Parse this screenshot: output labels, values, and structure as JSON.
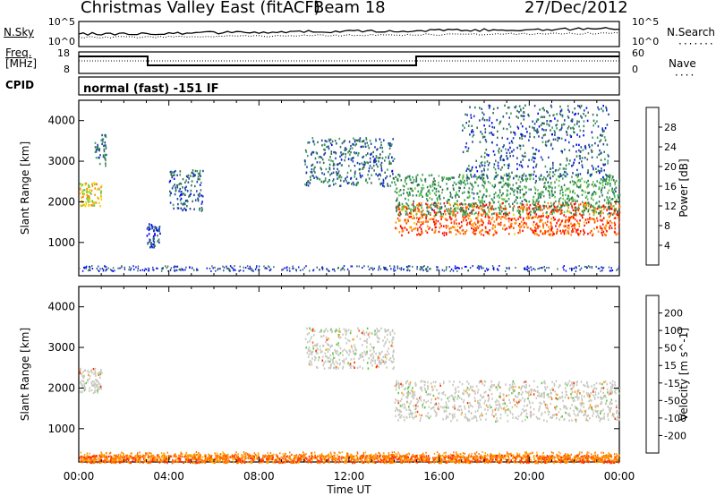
{
  "header": {
    "station": "Christmas Valley East (fitACF)",
    "beam": "Beam 18",
    "date": "27/Dec/2012"
  },
  "status_panels": {
    "nsky_label": "N.Sky",
    "nsearch_label": "N.Search",
    "nsky_ticks": [
      "10^5",
      "10^0"
    ],
    "nsearch_ticks": [
      "10^5",
      "10^0"
    ],
    "freq_label_line1": "Freq.",
    "freq_label_line2": "[MHz]",
    "freq_ticks": [
      "18",
      "8"
    ],
    "nave_label": "Nave",
    "nave_ticks": [
      "60",
      "0"
    ],
    "cpid_label": "CPID",
    "cpid_text": "normal (fast) -151 IF"
  },
  "colors": {
    "power_scale": [
      "#0000ff",
      "#1a3fa8",
      "#2e7050",
      "#3a9a5e",
      "#5cc840",
      "#f0d400",
      "#ff8c00",
      "#ff4000",
      "#ff0000"
    ],
    "velocity_scale": [
      "#2020ff",
      "#1a3fa8",
      "#2e8a50",
      "#5cc840",
      "#c8c8c0",
      "#ffa000",
      "#ff7000",
      "#ff3000",
      "#ff0000"
    ],
    "frame": "#000000"
  },
  "chart_data": [
    {
      "type": "heatmap",
      "name": "power",
      "ylabel": "Slant Range [km]",
      "xlabel": "",
      "x_ticks": [
        "00:00",
        "04:00",
        "08:00",
        "12:00",
        "16:00",
        "20:00",
        "00:00"
      ],
      "x_range_hours": [
        0,
        24
      ],
      "y_ticks": [
        "1000",
        "2000",
        "3000",
        "4000"
      ],
      "y_range_km": [
        180,
        4500
      ],
      "colorbar_label": "Power [dB]",
      "colorbar_ticks": [
        "28",
        "24",
        "20",
        "16",
        "12",
        "8",
        "4"
      ],
      "colorbar_range": [
        0,
        32
      ],
      "scatter_regions": [
        {
          "t_start": 0.0,
          "t_end": 1.0,
          "r_center": 2200,
          "r_width": 300,
          "level": 20
        },
        {
          "t_start": 0.7,
          "t_end": 1.2,
          "r_center": 3300,
          "r_width": 400,
          "level": 8
        },
        {
          "t_start": 3.0,
          "t_end": 3.6,
          "r_center": 1200,
          "r_width": 300,
          "level": 6
        },
        {
          "t_start": 4.0,
          "t_end": 5.5,
          "r_center": 2300,
          "r_width": 500,
          "level": 7
        },
        {
          "t_start": 10.0,
          "t_end": 14.0,
          "r_center": 3000,
          "r_width": 600,
          "level": 8
        },
        {
          "t_start": 14.0,
          "t_end": 24.0,
          "r_center": 1600,
          "r_width": 400,
          "level": 26
        },
        {
          "t_start": 14.0,
          "t_end": 24.0,
          "r_center": 2200,
          "r_width": 500,
          "level": 12
        },
        {
          "t_start": 17.0,
          "t_end": 23.5,
          "r_center": 3500,
          "r_width": 900,
          "level": 7
        }
      ]
    },
    {
      "type": "heatmap",
      "name": "velocity",
      "ylabel": "Slant Range [km]",
      "xlabel": "Time UT",
      "x_ticks": [
        "00:00",
        "04:00",
        "08:00",
        "12:00",
        "16:00",
        "20:00",
        "00:00"
      ],
      "x_range_hours": [
        0,
        24
      ],
      "y_ticks": [
        "1000",
        "2000",
        "3000",
        "4000"
      ],
      "y_range_km": [
        180,
        4500
      ],
      "colorbar_label": "Velocity [m s^-1]",
      "colorbar_ticks": [
        "200",
        "100",
        "50",
        "15",
        "-15",
        "-50",
        "-100",
        "-200"
      ],
      "scatter_regions": [
        {
          "t_start": 0.0,
          "t_end": 1.0,
          "r_center": 2200,
          "r_width": 300,
          "level": 0
        },
        {
          "t_start": 10.0,
          "t_end": 14.0,
          "r_center": 3000,
          "r_width": 500,
          "level": 0
        },
        {
          "t_start": 14.0,
          "t_end": 24.0,
          "r_center": 1700,
          "r_width": 500,
          "level": 0
        },
        {
          "t_start": 0.0,
          "t_end": 24.0,
          "r_center": 250,
          "r_width": 120,
          "level": -60
        }
      ]
    }
  ]
}
